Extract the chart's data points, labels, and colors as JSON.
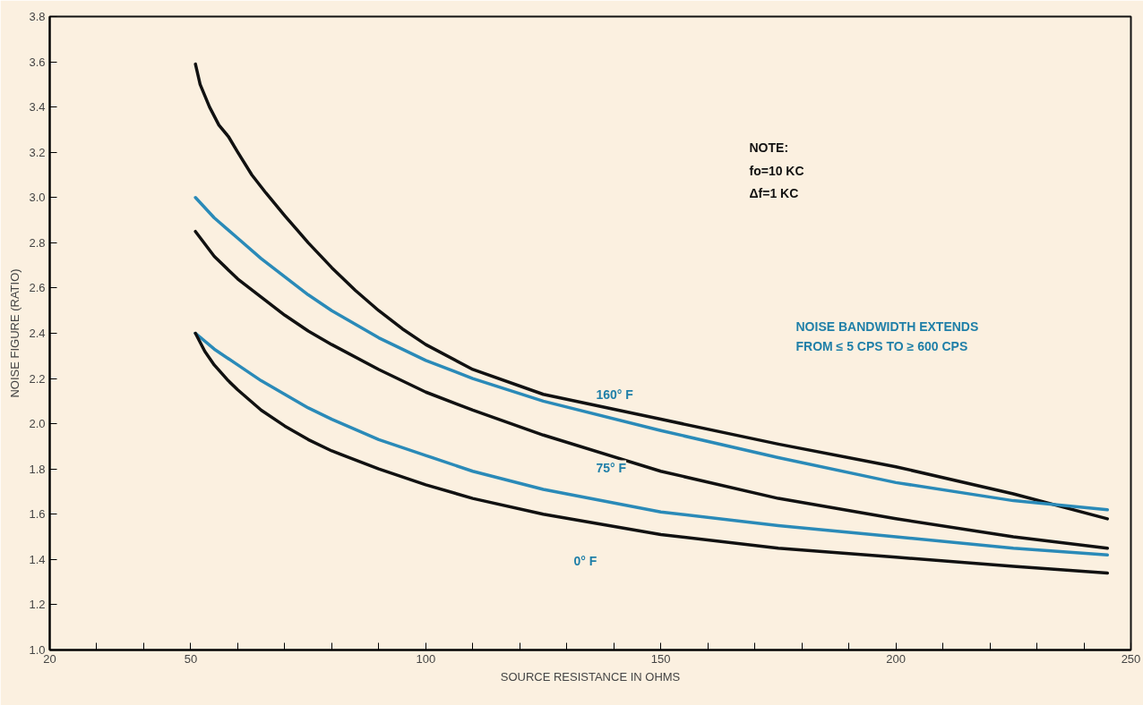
{
  "chart_data": {
    "type": "line",
    "xlabel": "SOURCE RESISTANCE IN OHMS",
    "ylabel": "NOISE FIGURE (RATIO)",
    "xlim": [
      20,
      250
    ],
    "ylim": [
      1.0,
      3.8
    ],
    "xticks": [
      20,
      {
        "value": 30,
        "label": null
      },
      {
        "value": 40,
        "label": null
      },
      50,
      {
        "value": 60,
        "label": null
      },
      {
        "value": 70,
        "label": null
      },
      {
        "value": 80,
        "label": null
      },
      {
        "value": 90,
        "label": null
      },
      100,
      {
        "value": 110,
        "label": null
      },
      {
        "value": 120,
        "label": null
      },
      {
        "value": 130,
        "label": null
      },
      {
        "value": 140,
        "label": null
      },
      150,
      {
        "value": 160,
        "label": null
      },
      {
        "value": 170,
        "label": null
      },
      {
        "value": 180,
        "label": null
      },
      {
        "value": 190,
        "label": null
      },
      200,
      {
        "value": 210,
        "label": null
      },
      {
        "value": 220,
        "label": null
      },
      {
        "value": 230,
        "label": null
      },
      {
        "value": 240,
        "label": null
      },
      250
    ],
    "yticks": [
      {
        "value": 1.0,
        "label": "1.0"
      },
      1.2,
      1.4,
      1.6,
      1.8,
      {
        "value": 2.0,
        "label": "2.0"
      },
      2.2,
      2.4,
      2.6,
      2.8,
      {
        "value": 3.0,
        "label": "3.0"
      },
      3.2,
      3.4,
      3.6,
      3.8
    ],
    "grid": false,
    "marker": "none",
    "line_style": "solid",
    "series": [
      {
        "color": "#111111",
        "x": [
          51,
          52,
          54,
          56,
          58,
          60,
          63,
          66,
          70,
          75,
          80,
          85,
          90,
          95,
          100,
          110,
          125,
          150,
          175,
          200,
          225,
          245
        ],
        "values": [
          3.59,
          3.5,
          3.4,
          3.32,
          3.27,
          3.2,
          3.1,
          3.02,
          2.92,
          2.8,
          2.69,
          2.59,
          2.5,
          2.42,
          2.35,
          2.24,
          2.13,
          2.02,
          1.91,
          1.81,
          1.69,
          1.58
        ]
      },
      {
        "color": "#2a8ab8",
        "x": [
          51,
          55,
          60,
          65,
          70,
          75,
          80,
          90,
          100,
          110,
          125,
          150,
          175,
          200,
          225,
          245
        ],
        "values": [
          3.0,
          2.91,
          2.82,
          2.73,
          2.65,
          2.57,
          2.5,
          2.38,
          2.28,
          2.2,
          2.1,
          1.97,
          1.85,
          1.74,
          1.66,
          1.62
        ]
      },
      {
        "color": "#111111",
        "x": [
          51,
          55,
          60,
          65,
          70,
          75,
          80,
          90,
          100,
          110,
          125,
          150,
          175,
          200,
          225,
          245
        ],
        "values": [
          2.85,
          2.74,
          2.64,
          2.56,
          2.48,
          2.41,
          2.35,
          2.24,
          2.14,
          2.06,
          1.95,
          1.79,
          1.67,
          1.58,
          1.5,
          1.45
        ]
      },
      {
        "color": "#2a8ab8",
        "x": [
          51,
          55,
          60,
          65,
          70,
          75,
          80,
          90,
          100,
          110,
          125,
          150,
          175,
          200,
          225,
          245
        ],
        "values": [
          2.4,
          2.33,
          2.26,
          2.19,
          2.13,
          2.07,
          2.02,
          1.93,
          1.86,
          1.79,
          1.71,
          1.61,
          1.55,
          1.5,
          1.45,
          1.42
        ]
      },
      {
        "color": "#111111",
        "x": [
          51,
          53,
          55,
          58,
          60,
          65,
          70,
          75,
          80,
          90,
          100,
          110,
          125,
          150,
          175,
          200,
          225,
          245
        ],
        "values": [
          2.4,
          2.32,
          2.26,
          2.19,
          2.15,
          2.06,
          1.99,
          1.93,
          1.88,
          1.8,
          1.73,
          1.67,
          1.6,
          1.51,
          1.45,
          1.41,
          1.37,
          1.34
        ]
      }
    ],
    "annotations": [
      "160° F",
      "75° F",
      "0° F",
      "NOTE:\n    fo=10 KC\n    Δf=1 KC",
      "NOISE BANDWIDTH EXTENDS\nFROM ≤ 5 CPS  TO ≥ 600 CPS"
    ]
  }
}
